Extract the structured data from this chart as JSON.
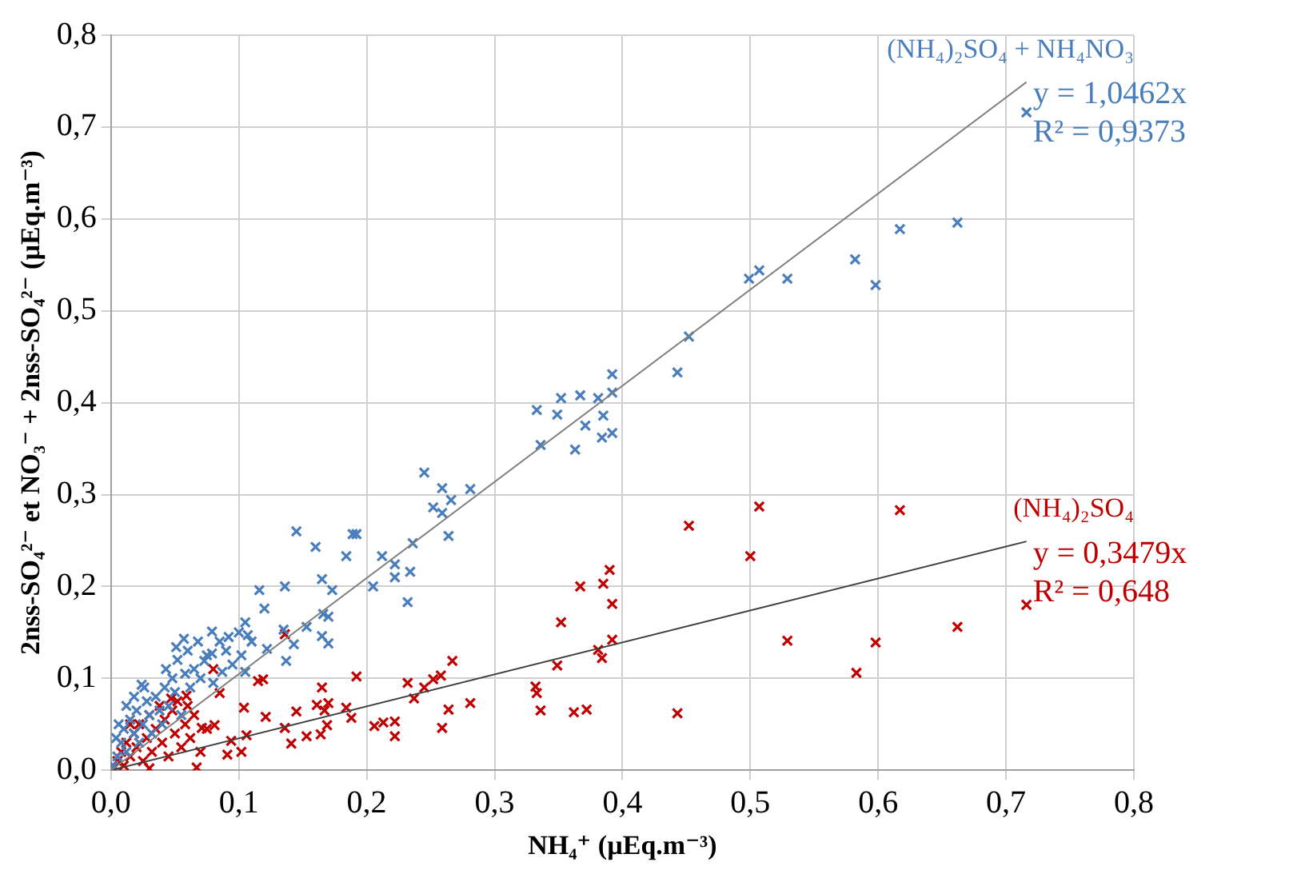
{
  "chart_data": {
    "type": "scatter",
    "xlabel": "NH₄⁺ (µEq.m⁻³)",
    "ylabel": "2nss-SO₄²⁻ et NO₃⁻ + 2nss-SO₄²⁻ (µEq.m⁻³)",
    "xlim": [
      0,
      0.8
    ],
    "ylim": [
      0,
      0.8
    ],
    "xticks": [
      {
        "value": 0,
        "label": "0,0"
      },
      {
        "value": 0.1,
        "label": "0,1"
      },
      {
        "value": 0.2,
        "label": "0,2"
      },
      {
        "value": 0.3,
        "label": "0,3"
      },
      {
        "value": 0.4,
        "label": "0,4"
      },
      {
        "value": 0.5,
        "label": "0,5"
      },
      {
        "value": 0.6,
        "label": "0,6"
      },
      {
        "value": 0.7,
        "label": "0,7"
      },
      {
        "value": 0.8,
        "label": "0,8"
      }
    ],
    "yticks": [
      {
        "value": 0,
        "label": "0,0"
      },
      {
        "value": 0.1,
        "label": "0,1"
      },
      {
        "value": 0.2,
        "label": "0,2"
      },
      {
        "value": 0.3,
        "label": "0,3"
      },
      {
        "value": 0.4,
        "label": "0,4"
      },
      {
        "value": 0.5,
        "label": "0,5"
      },
      {
        "value": 0.6,
        "label": "0,6"
      },
      {
        "value": 0.7,
        "label": "0,7"
      },
      {
        "value": 0.8,
        "label": "0,8"
      }
    ],
    "grid": true,
    "marker": "cross",
    "annotations": [
      "y = 1,0462x",
      "R² = 0,9373",
      "y = 0,3479x",
      "R² = 0,648"
    ],
    "series": [
      {
        "name": "(NH₄)₂SO₄ + NH₄NO₃",
        "color": "#4a7ebb",
        "x": [
          0.716,
          0.662,
          0.617,
          0.582,
          0.598,
          0.499,
          0.507,
          0.529,
          0.452,
          0.443,
          0.392,
          0.333,
          0.352,
          0.367,
          0.381,
          0.392,
          0.349,
          0.385,
          0.371,
          0.336,
          0.363,
          0.384,
          0.392,
          0.245,
          0.259,
          0.281,
          0.252,
          0.266,
          0.259,
          0.264,
          0.236,
          0.145,
          0.189,
          0.192,
          0.16,
          0.184,
          0.212,
          0.222,
          0.222,
          0.234,
          0.205,
          0.232,
          0.165,
          0.173,
          0.136,
          0.116,
          0.12,
          0.166,
          0.17,
          0.153,
          0.165,
          0.17,
          0.143,
          0.135,
          0.137,
          0.122,
          0.105,
          0.107,
          0.102,
          0.105,
          0.092,
          0.079,
          0.079,
          0.057,
          0.051,
          0.087,
          0.073,
          0.043,
          0.024,
          0.002,
          0.005,
          0.008,
          0.01,
          0.012,
          0.015,
          0.018,
          0.02,
          0.022,
          0.025,
          0.028,
          0.03,
          0.032,
          0.035,
          0.038,
          0.04,
          0.042,
          0.045,
          0.048,
          0.05,
          0.052,
          0.055,
          0.058,
          0.06,
          0.062,
          0.065,
          0.068,
          0.07,
          0.075,
          0.08,
          0.085,
          0.09,
          0.095,
          0.1,
          0.11,
          0.012,
          0.006,
          0.018,
          0.004,
          0.026
        ],
        "values": [
          0.716,
          0.596,
          0.589,
          0.556,
          0.528,
          0.535,
          0.544,
          0.535,
          0.472,
          0.433,
          0.431,
          0.392,
          0.405,
          0.408,
          0.405,
          0.411,
          0.387,
          0.386,
          0.375,
          0.354,
          0.349,
          0.362,
          0.367,
          0.324,
          0.307,
          0.306,
          0.286,
          0.294,
          0.28,
          0.255,
          0.247,
          0.26,
          0.257,
          0.257,
          0.243,
          0.233,
          0.233,
          0.224,
          0.21,
          0.216,
          0.2,
          0.183,
          0.208,
          0.196,
          0.2,
          0.196,
          0.176,
          0.17,
          0.167,
          0.156,
          0.146,
          0.138,
          0.137,
          0.153,
          0.119,
          0.132,
          0.161,
          0.147,
          0.125,
          0.107,
          0.145,
          0.151,
          0.127,
          0.143,
          0.134,
          0.107,
          0.119,
          0.11,
          0.093,
          0.005,
          0.015,
          0.03,
          0.045,
          0.02,
          0.055,
          0.04,
          0.065,
          0.03,
          0.05,
          0.075,
          0.06,
          0.04,
          0.08,
          0.065,
          0.05,
          0.09,
          0.07,
          0.1,
          0.085,
          0.12,
          0.06,
          0.105,
          0.13,
          0.09,
          0.11,
          0.14,
          0.1,
          0.125,
          0.095,
          0.14,
          0.13,
          0.115,
          0.15,
          0.14,
          0.07,
          0.05,
          0.08,
          0.035,
          0.09
        ]
      },
      {
        "type": "line",
        "marker": "none",
        "color": "#808080",
        "x": [
          0,
          0.716
        ],
        "values": [
          0,
          0.749
        ]
      },
      {
        "name": "(NH₄)₂SO₄",
        "color": "#c00000",
        "x": [
          0.452,
          0.5,
          0.507,
          0.617,
          0.529,
          0.598,
          0.583,
          0.662,
          0.716,
          0.443,
          0.39,
          0.367,
          0.385,
          0.392,
          0.352,
          0.349,
          0.381,
          0.384,
          0.392,
          0.332,
          0.333,
          0.336,
          0.362,
          0.372,
          0.267,
          0.258,
          0.252,
          0.245,
          0.237,
          0.232,
          0.281,
          0.264,
          0.259,
          0.222,
          0.222,
          0.206,
          0.213,
          0.192,
          0.184,
          0.188,
          0.165,
          0.161,
          0.17,
          0.167,
          0.169,
          0.164,
          0.153,
          0.145,
          0.136,
          0.141,
          0.136,
          0.121,
          0.119,
          0.115,
          0.104,
          0.106,
          0.102,
          0.08,
          0.094,
          0.085,
          0.081,
          0.067,
          0.047,
          0.059,
          0.071,
          0.091,
          0.002,
          0.005,
          0.008,
          0.01,
          0.012,
          0.015,
          0.018,
          0.02,
          0.022,
          0.025,
          0.028,
          0.03,
          0.032,
          0.035,
          0.038,
          0.04,
          0.042,
          0.045,
          0.048,
          0.05,
          0.052,
          0.055,
          0.058,
          0.062,
          0.065,
          0.07,
          0.075,
          0.03,
          0.015,
          0.06
        ],
        "values": [
          0.266,
          0.233,
          0.287,
          0.283,
          0.141,
          0.139,
          0.106,
          0.156,
          0.18,
          0.062,
          0.218,
          0.2,
          0.203,
          0.181,
          0.161,
          0.114,
          0.131,
          0.122,
          0.142,
          0.091,
          0.084,
          0.065,
          0.063,
          0.066,
          0.119,
          0.103,
          0.099,
          0.09,
          0.078,
          0.095,
          0.073,
          0.066,
          0.046,
          0.053,
          0.037,
          0.048,
          0.052,
          0.102,
          0.068,
          0.057,
          0.09,
          0.071,
          0.073,
          0.065,
          0.049,
          0.039,
          0.037,
          0.064,
          0.046,
          0.029,
          0.148,
          0.058,
          0.099,
          0.097,
          0.068,
          0.038,
          0.02,
          0.11,
          0.032,
          0.084,
          0.049,
          0.003,
          0.078,
          0.081,
          0.046,
          0.017,
          0.002,
          0.01,
          0.02,
          0.005,
          0.03,
          0.015,
          0.04,
          0.025,
          0.05,
          0.01,
          0.035,
          0.06,
          0.02,
          0.045,
          0.07,
          0.03,
          0.055,
          0.015,
          0.065,
          0.04,
          0.075,
          0.025,
          0.05,
          0.035,
          0.06,
          0.02,
          0.045,
          0.002,
          0.05,
          0.07
        ]
      },
      {
        "type": "line",
        "marker": "none",
        "color": "#404040",
        "x": [
          0,
          0.716
        ],
        "values": [
          0,
          0.249
        ]
      }
    ]
  }
}
